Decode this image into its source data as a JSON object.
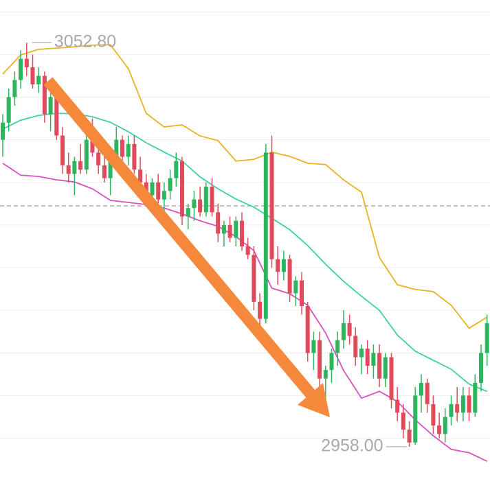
{
  "chart_data": {
    "type": "candlestick",
    "ylim": [
      2950.44,
      3062.78
    ],
    "grid_lines": [
      2960,
      2970,
      2980,
      2990,
      3000,
      3010,
      3020,
      3030,
      3040,
      3050,
      3060
    ],
    "dashed_line": 3014.5,
    "up_color": "#2db55d",
    "down_color": "#e04a5a",
    "open": [
      3030,
      3034,
      3040,
      3044,
      3049,
      3047,
      3043,
      3045,
      3036,
      3040,
      3031,
      3024,
      3022,
      3025,
      3023,
      3030,
      3027,
      3024,
      3021,
      3025,
      3030,
      3026,
      3029,
      3023,
      3020,
      3017,
      3020,
      3016,
      3018,
      3021,
      3025,
      3012,
      3014,
      3016,
      3013,
      3019,
      3013,
      3008,
      3010,
      3007,
      3011,
      3005,
      3003,
      2992,
      2988,
      3027,
      3002,
      2999,
      3002,
      2994,
      2997,
      2991,
      2980,
      2983,
      2974,
      2976,
      2980,
      2983,
      2987,
      2984,
      2979,
      2981,
      2977,
      2980,
      2974,
      2979,
      2969,
      2966,
      2962,
      2959,
      2970,
      2973,
      2968,
      2963,
      2961,
      2965,
      2968,
      2966,
      2970,
      2966,
      2973,
      2980
    ],
    "high": [
      3036,
      3042,
      3046,
      3051,
      3052.8,
      3050,
      3047,
      3046,
      3042,
      3041,
      3033,
      3027,
      3026,
      3029,
      3032,
      3035,
      3030,
      3028,
      3026,
      3033,
      3031,
      3031,
      3031,
      3026,
      3022,
      3021,
      3022,
      3020,
      3023,
      3027,
      3026,
      3015,
      3018,
      3019,
      3020,
      3021,
      3015,
      3011,
      3012,
      3012,
      3013,
      3007,
      3005,
      2994,
      3029,
      3031,
      3005,
      3004,
      3003,
      2998,
      2999,
      2992,
      2985,
      2985,
      2977,
      2981,
      2985,
      2990,
      2989,
      2986,
      2982,
      2983,
      2982,
      2982,
      2980,
      2980,
      2972,
      2968,
      2964,
      2972,
      2975,
      2974,
      2970,
      2966,
      2967,
      2970,
      2972,
      2972,
      2972,
      2975,
      2982,
      2989
    ],
    "low": [
      3026,
      3032,
      3038,
      3042,
      3045,
      3042,
      3041,
      3034,
      3032,
      3030,
      3022,
      3020,
      3017,
      3022,
      3022,
      3026,
      3022,
      3020,
      3017,
      3023,
      3024,
      3024,
      3022,
      3018,
      3016,
      3015,
      3015,
      3013,
      3016,
      3019,
      3010,
      3009,
      3011,
      3012,
      3012,
      3012,
      3006,
      3005,
      3006,
      3005,
      3004,
      3002,
      2990,
      2986,
      2987,
      3000,
      2996,
      2997,
      2992,
      2991,
      2989,
      2978,
      2976,
      2972,
      2968,
      2973,
      2977,
      2981,
      2982,
      2977,
      2975,
      2975,
      2974,
      2972,
      2972,
      2967,
      2964,
      2960,
      2958,
      2958.5,
      2966,
      2966,
      2961,
      2960,
      2959,
      2963,
      2964,
      2964,
      2964,
      2965,
      2971,
      2977
    ],
    "close": [
      3034,
      3040,
      3044,
      3049,
      3047,
      3043,
      3045,
      3036,
      3040,
      3031,
      3024,
      3022,
      3025,
      3023,
      3030,
      3027,
      3024,
      3021,
      3025,
      3030,
      3026,
      3029,
      3023,
      3020,
      3017,
      3020,
      3016,
      3018,
      3021,
      3025,
      3012,
      3014,
      3016,
      3013,
      3019,
      3013,
      3008,
      3010,
      3007,
      3011,
      3005,
      3003,
      2992,
      2988,
      3027,
      3002,
      2999,
      3002,
      2994,
      2997,
      2991,
      2980,
      2983,
      2974,
      2976,
      2980,
      2983,
      2987,
      2984,
      2979,
      2981,
      2977,
      2980,
      2974,
      2979,
      2969,
      2966,
      2962,
      2959,
      2970,
      2973,
      2968,
      2963,
      2961,
      2965,
      2968,
      2966,
      2970,
      2966,
      2973,
      2980,
      2987
    ],
    "bands": [
      {
        "color": "#e8b320",
        "x": [
          0,
          3,
          6,
          9,
          12,
          15,
          18,
          21,
          24,
          27,
          30,
          33,
          36,
          39,
          42,
          45,
          48,
          51,
          54,
          57,
          60,
          63,
          66,
          69,
          72,
          75,
          78,
          81
        ],
        "values": [
          3045.4,
          3049.9,
          3051.2,
          3051.5,
          3051.8,
          3052.2,
          3052.3,
          3046.7,
          3036.2,
          3033.0,
          3033.5,
          3030.9,
          3029.8,
          3025.0,
          3025.4,
          3027.1,
          3026.1,
          3024.5,
          3024.2,
          3020.6,
          3017.7,
          3002.4,
          2996.0,
          2994.9,
          2994.4,
          2991.2,
          2985.8,
          2988.4
        ]
      },
      {
        "color": "#3ccfa8",
        "x": [
          0,
          3,
          6,
          9,
          12,
          15,
          18,
          21,
          24,
          27,
          30,
          33,
          36,
          39,
          42,
          45,
          48,
          51,
          54,
          57,
          60,
          63,
          66,
          69,
          72,
          75,
          78,
          81
        ],
        "values": [
          3032.5,
          3034.6,
          3035.7,
          3036.2,
          3036.1,
          3035.4,
          3034.1,
          3031.9,
          3029.3,
          3027.1,
          3025.0,
          3021.3,
          3018.5,
          3016.1,
          3014.2,
          3011.6,
          3008.9,
          3005.2,
          3000.8,
          2996.8,
          2993.3,
          2990.0,
          2984.2,
          2980.4,
          2978.3,
          2976.2,
          2972.7,
          2971.0
        ]
      },
      {
        "color": "#d94fbf",
        "x": [
          0,
          3,
          6,
          9,
          12,
          15,
          18,
          21,
          24,
          27,
          30,
          33,
          36,
          39,
          42,
          45,
          48,
          51,
          54,
          57,
          60,
          63,
          66,
          69,
          72,
          75,
          78,
          81
        ],
        "values": [
          3024.5,
          3021.7,
          3021.4,
          3020.6,
          3020.1,
          3018.5,
          3015.8,
          3015.3,
          3014.8,
          3014.0,
          3012.6,
          3011.0,
          3009.7,
          3007.3,
          3004.0,
          2995.2,
          2993.9,
          2991.2,
          2984.7,
          2975.9,
          2969.4,
          2971.0,
          2968.6,
          2964.3,
          2960.6,
          2957.4,
          2956.6,
          2954.6
        ]
      }
    ],
    "high_label": {
      "value": 3052.8,
      "label": "3052.80",
      "index": 4
    },
    "low_label": {
      "value": 2958,
      "label": "2958.00",
      "index": 68
    }
  }
}
